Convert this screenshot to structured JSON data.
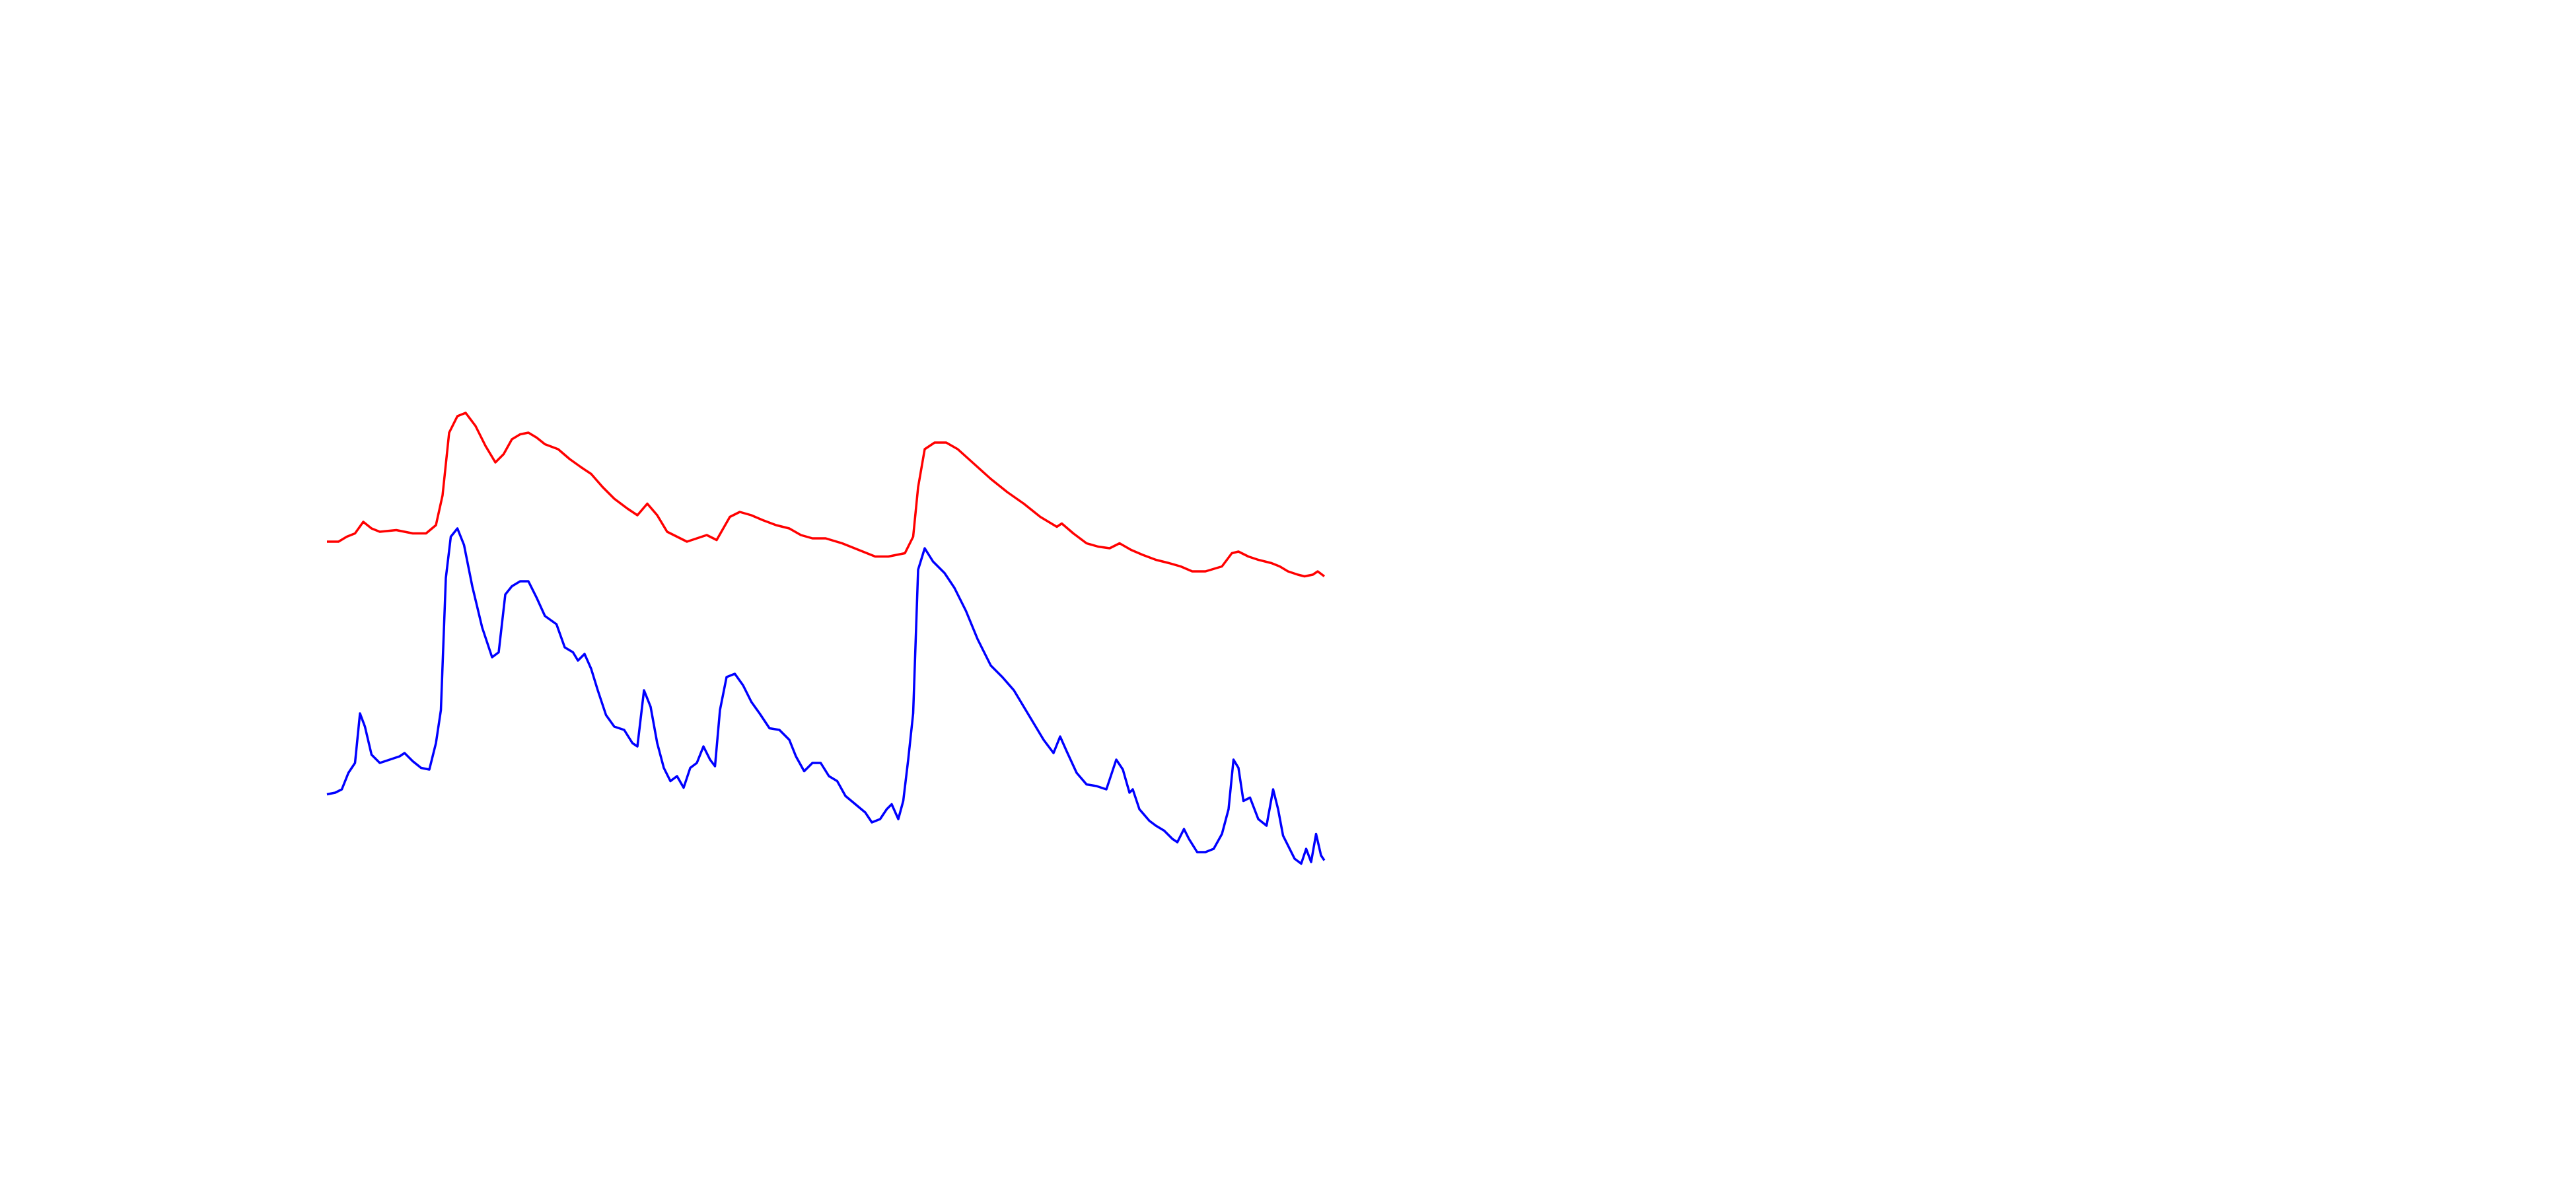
{
  "chart_data": {
    "type": "line",
    "xlim": [
      0,
      1560
    ],
    "ylim": [
      0,
      720
    ],
    "series": [
      {
        "color": "#ff0000",
        "x": [
          198,
          205,
          210,
          215,
          220,
          225,
          230,
          240,
          250,
          258,
          264,
          268,
          272,
          277,
          282,
          288,
          294,
          300,
          305,
          310,
          315,
          320,
          325,
          330,
          338,
          345,
          352,
          358,
          365,
          372,
          380,
          386,
          392,
          398,
          404,
          410,
          416,
          422,
          428,
          434,
          438,
          442,
          448,
          455,
          462,
          470,
          478,
          485,
          492,
          500,
          510,
          520,
          530,
          538,
          543,
          548,
          553,
          556,
          560,
          566,
          573,
          580,
          590,
          600,
          610,
          620,
          630,
          640,
          643,
          650,
          658,
          665,
          672,
          678,
          685,
          692,
          700,
          708,
          715,
          722,
          730,
          740,
          746,
          750,
          756,
          762,
          770,
          775,
          780,
          786,
          790,
          795,
          798,
          802
        ],
        "values": [
          392,
          392,
          395,
          397,
          404,
          400,
          398,
          399,
          397,
          397,
          402,
          420,
          458,
          468,
          470,
          462,
          450,
          440,
          445,
          454,
          457,
          458,
          455,
          451,
          448,
          442,
          437,
          433,
          425,
          418,
          412,
          408,
          415,
          408,
          398,
          395,
          392,
          394,
          396,
          393,
          400,
          407,
          410,
          408,
          405,
          402,
          400,
          396,
          394,
          394,
          391,
          387,
          383,
          383,
          384,
          385,
          395,
          425,
          448,
          452,
          452,
          448,
          439,
          430,
          422,
          415,
          407,
          401,
          403,
          397,
          391,
          389,
          388,
          391,
          387,
          384,
          381,
          379,
          377,
          374,
          374,
          377,
          385,
          386,
          383,
          381,
          379,
          377,
          374,
          372,
          371,
          372,
          374,
          371
        ]
      },
      {
        "color": "#0000ff",
        "x": [
          198,
          203,
          207,
          211,
          215,
          218,
          221,
          225,
          230,
          236,
          242,
          245,
          250,
          255,
          260,
          264,
          267,
          270,
          273,
          277,
          281,
          286,
          292,
          298,
          302,
          306,
          310,
          315,
          320,
          325,
          330,
          337,
          342,
          347,
          350,
          354,
          358,
          362,
          367,
          372,
          378,
          383,
          386,
          390,
          394,
          398,
          402,
          406,
          410,
          414,
          418,
          422,
          426,
          430,
          433,
          436,
          440,
          445,
          450,
          455,
          460,
          466,
          472,
          478,
          482,
          487,
          492,
          497,
          502,
          507,
          512,
          518,
          524,
          528,
          533,
          537,
          540,
          544,
          547,
          550,
          553,
          556,
          560,
          565,
          572,
          578,
          585,
          592,
          600,
          607,
          614,
          620,
          626,
          632,
          638,
          642,
          646,
          652,
          658,
          664,
          670,
          676,
          680,
          684,
          686,
          690,
          696,
          700,
          705,
          710,
          713,
          717,
          720,
          725,
          730,
          735,
          740,
          744,
          747,
          750,
          753,
          757,
          762,
          767,
          771,
          774,
          777,
          781,
          784,
          788,
          791,
          794,
          797,
          800,
          802
        ],
        "values": [
          239,
          240,
          242,
          252,
          258,
          288,
          280,
          263,
          258,
          260,
          262,
          264,
          259,
          255,
          254,
          270,
          290,
          370,
          395,
          400,
          390,
          365,
          340,
          322,
          325,
          360,
          365,
          368,
          368,
          358,
          347,
          342,
          328,
          325,
          320,
          324,
          315,
          302,
          287,
          280,
          278,
          270,
          268,
          302,
          292,
          270,
          255,
          247,
          250,
          243,
          255,
          258,
          268,
          260,
          256,
          290,
          310,
          312,
          305,
          295,
          288,
          279,
          278,
          272,
          262,
          253,
          258,
          258,
          250,
          247,
          238,
          233,
          228,
          222,
          224,
          230,
          233,
          224,
          235,
          260,
          288,
          375,
          388,
          380,
          373,
          364,
          350,
          333,
          317,
          310,
          302,
          292,
          282,
          272,
          264,
          274,
          265,
          252,
          245,
          244,
          242,
          260,
          254,
          240,
          242,
          230,
          223,
          220,
          217,
          212,
          210,
          218,
          212,
          204,
          204,
          206,
          215,
          230,
          260,
          255,
          235,
          237,
          224,
          220,
          242,
          230,
          214,
          206,
          200,
          197,
          206,
          198,
          215,
          202,
          199
        ]
      }
    ]
  }
}
